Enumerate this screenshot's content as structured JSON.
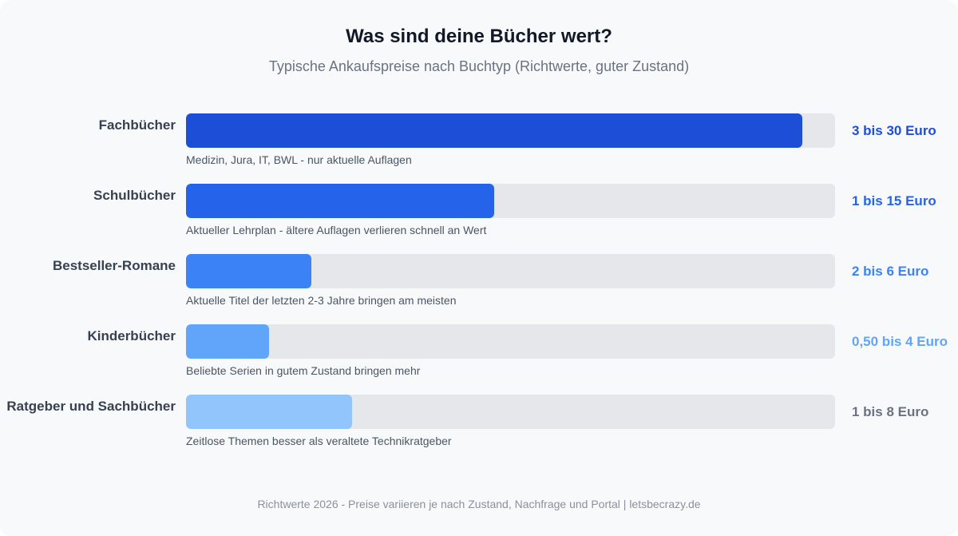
{
  "chart_data": {
    "type": "bar",
    "orientation": "horizontal",
    "title": "Was sind deine Bücher wert?",
    "subtitle": "Typische Ankaufspreise nach Buchtyp (Richtwerte, guter Zustand)",
    "xlim": [
      0,
      100
    ],
    "grid": false,
    "categories": [
      "Fachbücher",
      "Schulbücher",
      "Bestseller-Romane",
      "Kinderbücher",
      "Ratgeber und Sachbücher"
    ],
    "values": [
      95,
      47.5,
      19.3,
      12.8,
      25.6
    ],
    "value_labels": [
      "3 bis 30 Euro",
      "1 bis 15 Euro",
      "2 bis 6 Euro",
      "0,50 bis 4 Euro",
      "1 bis 8 Euro"
    ],
    "notes": [
      "Medizin, Jura, IT, BWL - nur aktuelle Auflagen",
      "Aktueller Lehrplan - ältere Auflagen verlieren schnell an Wert",
      "Aktuelle Titel der letzten 2-3 Jahre bringen am meisten",
      "Beliebte Serien in gutem Zustand bringen mehr",
      "Zeitlose Themen besser als veraltete Technikratgeber"
    ],
    "bar_colors": [
      "#1d4ed8",
      "#2563eb",
      "#3b82f6",
      "#60a5fa",
      "#93c5fd"
    ],
    "value_colors": [
      "#1d4ed8",
      "#2563eb",
      "#3b82f6",
      "#60a5fa",
      "#6b7280"
    ],
    "track_color": "#e5e7eb",
    "footer": "Richtwerte 2026 - Preise variieren je nach Zustand, Nachfrage und Portal | letsbecrazy.de"
  }
}
